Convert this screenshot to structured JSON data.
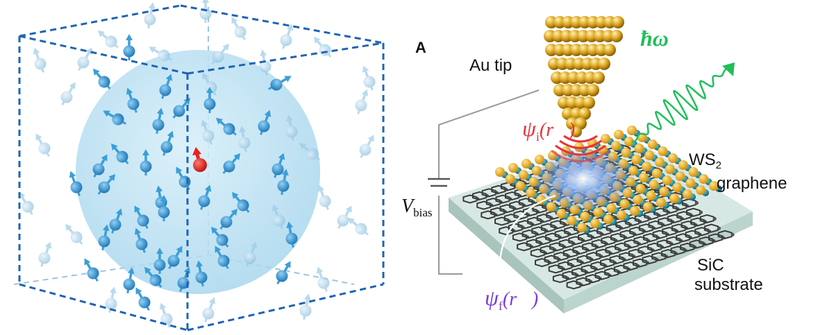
{
  "left_panel": {
    "colors": {
      "box": "#1e64b4",
      "sphere": "#bfe3f3",
      "spin": "#3a9fd8",
      "spin_faded": "#9ccbe6",
      "central_spin": "#e8211f"
    }
  },
  "right_panel": {
    "panel_letter": "A",
    "tip_label": "Au tip",
    "photon_label": "ħω",
    "psi_i": {
      "symbol": "ψ",
      "subscript": "i",
      "arg": "(r⃗)"
    },
    "psi_f": {
      "symbol": "ψ",
      "subscript": "f",
      "arg": "(r⃗)"
    },
    "vbias": {
      "symbol": "V",
      "subscript": "bias"
    },
    "ws2": {
      "main": "WS",
      "sub": "2"
    },
    "graphene_label": "graphene",
    "substrate_label_1": "SiC",
    "substrate_label_2": "substrate",
    "colors": {
      "photon": "#1fbf5a",
      "psi_i": "#e8323a",
      "psi_f": "#7a3cd6",
      "gold": "#d9a21a",
      "sulfur": "#f2b21d",
      "tungsten": "#0e7f9a",
      "graphene": "#3a3a3a",
      "substrate": "#c9ddd8"
    }
  }
}
